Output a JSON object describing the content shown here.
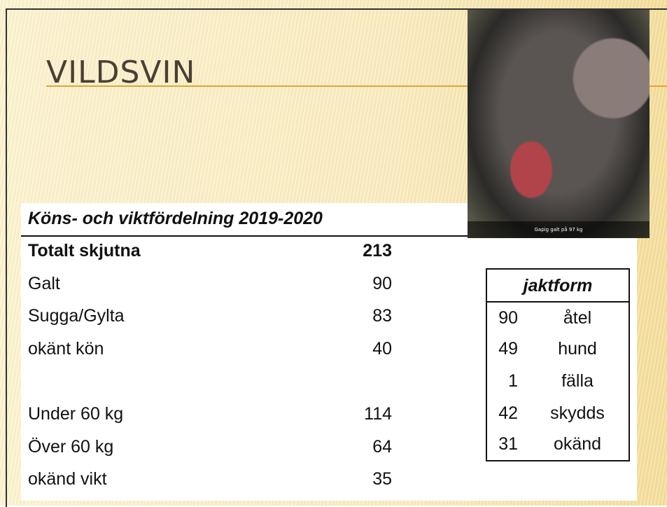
{
  "header": {
    "title": "VILDSVIN"
  },
  "image": {
    "caption": "Gapig galt på 97 kg"
  },
  "table": {
    "title": "Köns- och viktfördelning 2019-2020",
    "rows": [
      [
        "Totalt skjutna",
        213
      ],
      [
        "Galt",
        90
      ],
      [
        "Sugga/Gylta",
        83
      ],
      [
        "okänt kön",
        40
      ],
      [
        "Under 60 kg",
        114
      ],
      [
        "Över 60 kg",
        64
      ],
      [
        "okänd vikt",
        35
      ]
    ]
  },
  "jaktform": {
    "title": "jaktform",
    "rows": [
      [
        90,
        "åtel"
      ],
      [
        49,
        "hund"
      ],
      [
        1,
        "fälla"
      ],
      [
        42,
        "skydds"
      ],
      [
        31,
        "okänd"
      ]
    ]
  }
}
